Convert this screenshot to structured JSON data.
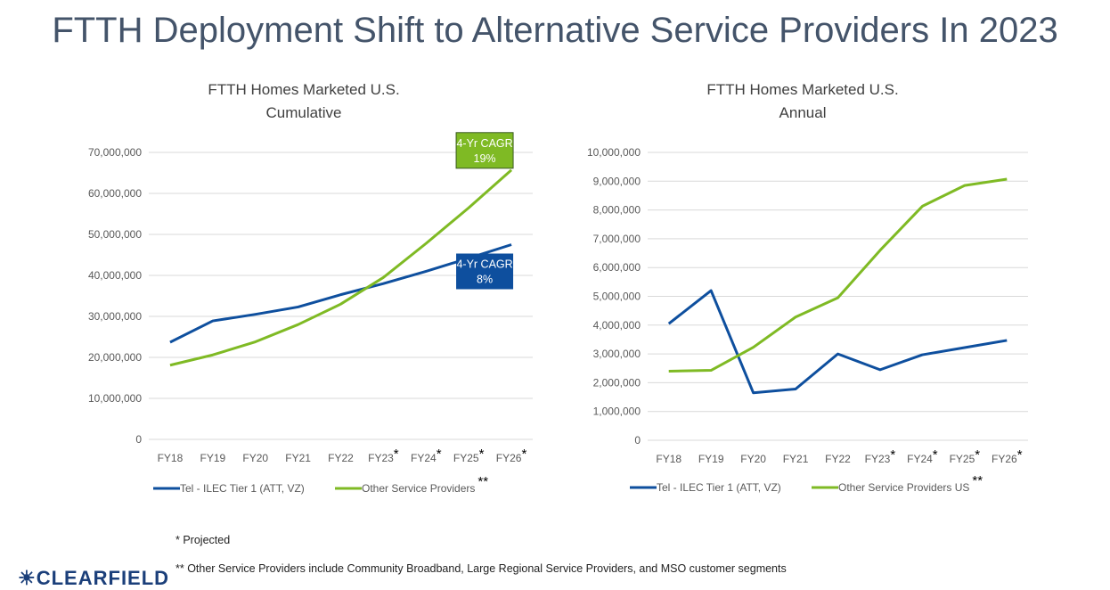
{
  "page_title": "FTTH Deployment Shift to Alternative Service Providers In 2023",
  "footnotes": {
    "projected": "* Projected",
    "other_providers": "** Other Service Providers include Community Broadband, Large Regional Service Providers, and MSO customer segments"
  },
  "logo_text": "CLEARFIELD",
  "colors": {
    "blue": "#0e4f9e",
    "green": "#7fba24",
    "grid": "#d9d9d9",
    "axis_text": "#595959"
  },
  "chart_data": [
    {
      "type": "line",
      "title": [
        "FTTH Homes Marketed U.S.",
        "Cumulative"
      ],
      "categories": [
        "FY18",
        "FY19",
        "FY20",
        "FY21",
        "FY22",
        "FY23",
        "FY24",
        "FY25",
        "FY26"
      ],
      "category_stars": [
        "",
        "",
        "",
        "",
        "",
        "*",
        "*",
        "*",
        "*"
      ],
      "ylim": [
        0,
        70000000
      ],
      "yticks": [
        0,
        10000000,
        20000000,
        30000000,
        40000000,
        50000000,
        60000000,
        70000000
      ],
      "ytick_labels": [
        "0",
        "10,000,000",
        "20,000,000",
        "30,000,000",
        "40,000,000",
        "50,000,000",
        "60,000,000",
        "70,000,000"
      ],
      "grid": true,
      "legend": "bottom",
      "series": [
        {
          "name": "Tel - ILEC Tier 1 (ATT, VZ)",
          "suffix": "",
          "color": "#0e4f9e",
          "values": [
            23700000,
            28900000,
            30500000,
            32300000,
            35300000,
            38000000,
            41000000,
            44200000,
            47500000
          ]
        },
        {
          "name": "Other Service Providers",
          "suffix": "**",
          "color": "#7fba24",
          "values": [
            18100000,
            20600000,
            23800000,
            28000000,
            33000000,
            39500000,
            47800000,
            56500000,
            65700000
          ]
        }
      ],
      "annotations": [
        {
          "text": [
            "4-Yr CAGR",
            "19%"
          ],
          "series": 1,
          "color": "#7fba24"
        },
        {
          "text": [
            "4-Yr CAGR",
            "8%"
          ],
          "series": 0,
          "color": "#0e4f9e"
        }
      ]
    },
    {
      "type": "line",
      "title": [
        "FTTH Homes Marketed U.S.",
        "Annual"
      ],
      "categories": [
        "FY18",
        "FY19",
        "FY20",
        "FY21",
        "FY22",
        "FY23",
        "FY24",
        "FY25",
        "FY26"
      ],
      "category_stars": [
        "",
        "",
        "",
        "",
        "",
        "*",
        "*",
        "*",
        "*"
      ],
      "ylim": [
        0,
        10000000
      ],
      "yticks": [
        0,
        1000000,
        2000000,
        3000000,
        4000000,
        5000000,
        6000000,
        7000000,
        8000000,
        9000000,
        10000000
      ],
      "ytick_labels": [
        "0",
        "1,000,000",
        "2,000,000",
        "3,000,000",
        "4,000,000",
        "5,000,000",
        "6,000,000",
        "7,000,000",
        "8,000,000",
        "9,000,000",
        "10,000,000"
      ],
      "grid": true,
      "legend": "bottom",
      "series": [
        {
          "name": "Tel - ILEC Tier 1 (ATT, VZ)",
          "suffix": "",
          "color": "#0e4f9e",
          "values": [
            4050000,
            5200000,
            1650000,
            1780000,
            3000000,
            2450000,
            2970000,
            3220000,
            3470000
          ]
        },
        {
          "name": "Other Service Providers US",
          "suffix": "**",
          "color": "#7fba24",
          "values": [
            2400000,
            2430000,
            3230000,
            4280000,
            4950000,
            6600000,
            8130000,
            8850000,
            9070000
          ]
        }
      ],
      "annotations": []
    }
  ]
}
